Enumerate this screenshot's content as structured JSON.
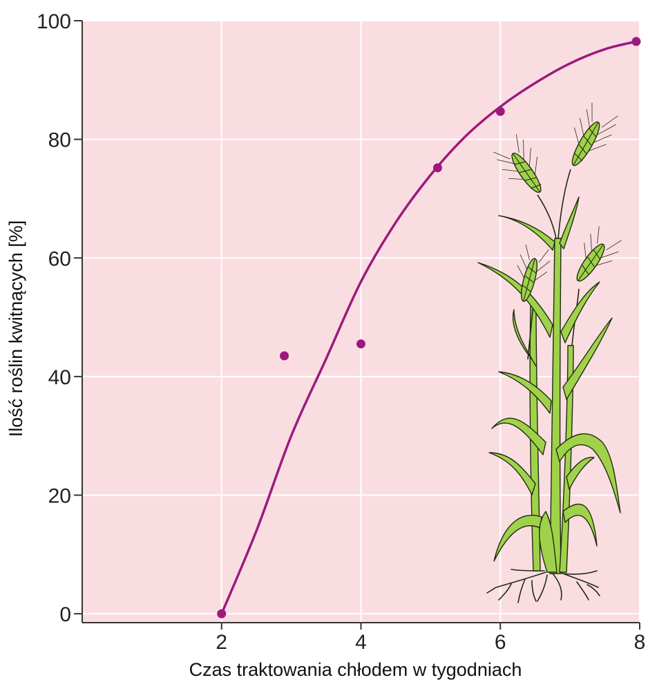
{
  "chart_data": {
    "type": "scatter",
    "title": "",
    "xlabel": "Czas traktowania chłodem w tygodniach",
    "ylabel": "Ilość roślin kwitnących [%]",
    "xlim": [
      0,
      8
    ],
    "ylim": [
      -1.5,
      100
    ],
    "x_ticks": [
      "2",
      "4",
      "6",
      "8"
    ],
    "y_ticks": [
      "0",
      "20",
      "40",
      "60",
      "80",
      "100"
    ],
    "grid": true,
    "points": [
      {
        "x": 2.0,
        "y": 0
      },
      {
        "x": 2.9,
        "y": 43.5
      },
      {
        "x": 4.0,
        "y": 45.5
      },
      {
        "x": 5.1,
        "y": 75.2
      },
      {
        "x": 6.0,
        "y": 84.7
      },
      {
        "x": 7.95,
        "y": 96.5
      }
    ],
    "fitted_curve": [
      {
        "x": 2.0,
        "y": 0
      },
      {
        "x": 2.5,
        "y": 14
      },
      {
        "x": 3.0,
        "y": 30
      },
      {
        "x": 3.5,
        "y": 43
      },
      {
        "x": 4.0,
        "y": 56
      },
      {
        "x": 4.5,
        "y": 66
      },
      {
        "x": 5.0,
        "y": 74
      },
      {
        "x": 5.5,
        "y": 80.5
      },
      {
        "x": 6.0,
        "y": 85.5
      },
      {
        "x": 6.5,
        "y": 89.5
      },
      {
        "x": 7.0,
        "y": 92.8
      },
      {
        "x": 7.5,
        "y": 95.2
      },
      {
        "x": 7.95,
        "y": 96.5
      }
    ],
    "colors": {
      "plot_background": "#fadde1",
      "grid": "#ffffff",
      "series": "#9c1a7e",
      "plant_fill": "#9fd24a",
      "plant_stroke": "#1f2a10"
    },
    "illustration": "wheat-plant"
  }
}
